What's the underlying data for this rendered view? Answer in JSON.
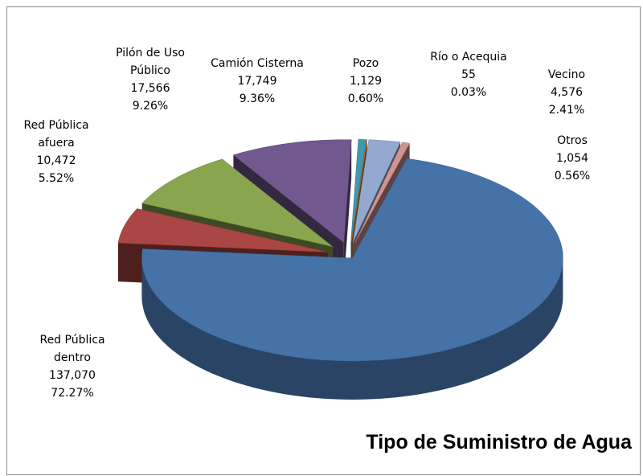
{
  "chart_data": {
    "type": "pie3d",
    "title": "Tipo de Suministro de Agua",
    "categories": [
      "Red Pública dentro",
      "Red Pública afuera",
      "Pilón de Uso Público",
      "Camión Cisterna",
      "Pozo",
      "Río o Acequia",
      "Vecino",
      "Otros"
    ],
    "values": [
      137070,
      10472,
      17566,
      17749,
      1129,
      55,
      4576,
      1054
    ],
    "value_labels": [
      "137,070",
      "10,472",
      "17,566",
      "17,749",
      "1,129",
      "55",
      "4,576",
      "1,054"
    ],
    "percentages": [
      72.27,
      5.52,
      9.26,
      9.36,
      0.6,
      0.03,
      2.41,
      0.56
    ],
    "percentage_labels": [
      "72.27%",
      "5.52%",
      "9.26%",
      "9.36%",
      "0.60%",
      "0.03%",
      "2.41%",
      "0.56%"
    ],
    "colors": [
      "#4572a7",
      "#aa4643",
      "#89a54e",
      "#71588f",
      "#4198af",
      "#db843d",
      "#93a9cf",
      "#d19392"
    ]
  }
}
